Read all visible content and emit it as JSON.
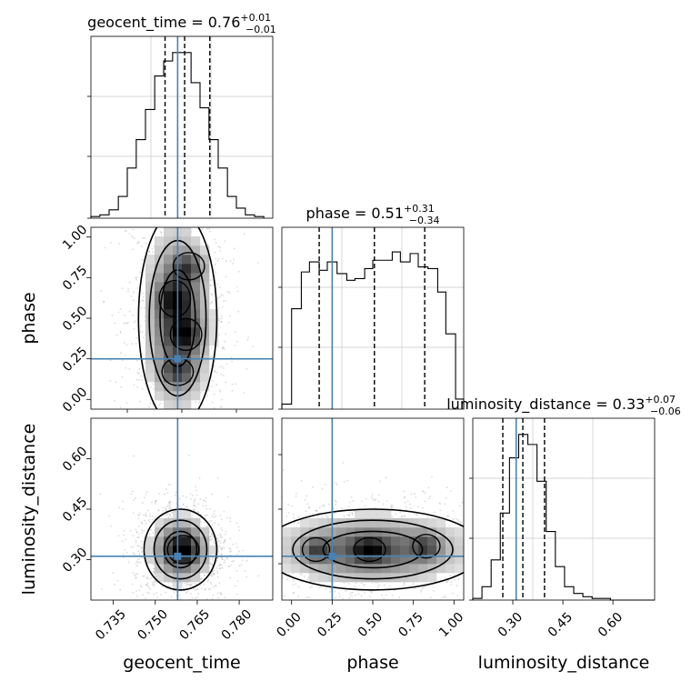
{
  "figure": {
    "type": "corner",
    "truth_color": "#4682b4",
    "hist_color": "#000000"
  },
  "chart_data": [
    {
      "type": "histogram",
      "panel": "geocent_time-hist",
      "title_main": "geocent_time = 0.76",
      "title_sup": "+0.01",
      "title_sub": "−0.01",
      "xlim": [
        0.727,
        0.792
      ],
      "truth": 0.758,
      "quantiles": [
        0.7535,
        0.7605,
        0.7695
      ],
      "bins": [
        0.727,
        0.7302,
        0.7335,
        0.7368,
        0.74,
        0.7432,
        0.7465,
        0.7498,
        0.753,
        0.7562,
        0.7595,
        0.7628,
        0.766,
        0.7692,
        0.7725,
        0.7758,
        0.779,
        0.7822,
        0.7855,
        0.7888
      ],
      "counts": [
        0.01,
        0.02,
        0.05,
        0.13,
        0.3,
        0.47,
        0.65,
        0.85,
        0.94,
        0.99,
        0.99,
        0.81,
        0.66,
        0.47,
        0.3,
        0.13,
        0.06,
        0.02,
        0.01
      ],
      "grid": true
    },
    {
      "type": "histogram",
      "panel": "phase-hist",
      "title_main": "phase = 0.51",
      "title_sup": "+0.31",
      "title_sub": "−0.34",
      "xlim": [
        -0.06,
        1.06
      ],
      "truth": 0.25,
      "quantiles": [
        0.17,
        0.51,
        0.82
      ],
      "bins": [
        -0.06,
        0.0,
        0.06,
        0.11,
        0.17,
        0.22,
        0.28,
        0.34,
        0.39,
        0.45,
        0.5,
        0.56,
        0.62,
        0.67,
        0.73,
        0.78,
        0.84,
        0.9,
        0.95,
        1.01,
        1.06
      ],
      "counts": [
        0.03,
        0.6,
        0.82,
        0.88,
        0.83,
        0.88,
        0.81,
        0.77,
        0.78,
        0.84,
        0.89,
        0.89,
        0.94,
        0.88,
        0.93,
        0.85,
        0.84,
        0.7,
        0.45,
        0.06
      ],
      "grid": true
    },
    {
      "type": "histogram",
      "panel": "luminosity_distance-hist",
      "title_main": "luminosity_distance = 0.33",
      "title_sup": "+0.07",
      "title_sub": "−0.06",
      "xlim": [
        0.18,
        0.725
      ],
      "truth": 0.31,
      "quantiles": [
        0.27,
        0.33,
        0.395
      ],
      "bins": [
        0.18,
        0.2075,
        0.235,
        0.2625,
        0.29,
        0.3175,
        0.345,
        0.3725,
        0.4,
        0.4275,
        0.455,
        0.4825,
        0.51,
        0.5375,
        0.565,
        0.5925,
        0.62,
        0.6475,
        0.675,
        0.7025,
        0.725
      ],
      "counts": [
        0.01,
        0.08,
        0.24,
        0.52,
        0.85,
        0.99,
        0.93,
        0.71,
        0.41,
        0.2,
        0.08,
        0.04,
        0.02,
        0.01,
        0.01,
        0.0,
        0.0,
        0.0,
        0.0,
        0.0
      ],
      "grid": true
    },
    {
      "type": "2d-density",
      "panel": "phase-vs-geocent_time",
      "xlim": [
        0.727,
        0.792
      ],
      "ylim": [
        -0.06,
        1.06
      ],
      "truth": [
        0.758,
        0.25
      ],
      "ylabel": "phase",
      "yticks": [
        "0.00",
        "0.25",
        "0.50",
        "0.75",
        "1.00"
      ],
      "blobs": [
        {
          "x": 0.758,
          "y": 0.5,
          "sx": 0.007,
          "sy": 0.33,
          "w": 1.0
        }
      ],
      "peaks": [
        {
          "x": 0.758,
          "y": 0.17,
          "sx": 0.004,
          "sy": 0.06
        },
        {
          "x": 0.761,
          "y": 0.4,
          "sx": 0.004,
          "sy": 0.07
        },
        {
          "x": 0.757,
          "y": 0.62,
          "sx": 0.004,
          "sy": 0.08
        },
        {
          "x": 0.762,
          "y": 0.82,
          "sx": 0.004,
          "sy": 0.06
        }
      ]
    },
    {
      "type": "2d-density",
      "panel": "luminosity_distance-vs-geocent_time",
      "xlim": [
        0.727,
        0.792
      ],
      "ylim": [
        0.18,
        0.72
      ],
      "truth": [
        0.758,
        0.31
      ],
      "ylabel": "luminosity_distance",
      "yticks": [
        "0.30",
        "0.45",
        "0.60"
      ],
      "xlabel": "geocent_time",
      "xticks": [
        "0.735",
        "0.750",
        "0.765",
        "0.780"
      ],
      "blobs": [
        {
          "x": 0.759,
          "y": 0.33,
          "sx": 0.0065,
          "sy": 0.06,
          "w": 1.0
        }
      ],
      "peaks": [
        {
          "x": 0.76,
          "y": 0.33,
          "sx": 0.004,
          "sy": 0.03
        }
      ]
    },
    {
      "type": "2d-density",
      "panel": "luminosity_distance-vs-phase",
      "xlim": [
        -0.06,
        1.06
      ],
      "ylim": [
        0.18,
        0.72
      ],
      "truth": [
        0.25,
        0.31
      ],
      "xlabel": "phase",
      "xticks": [
        "0.00",
        "0.25",
        "0.50",
        "0.75",
        "1.00"
      ],
      "blobs": [
        {
          "x": 0.5,
          "y": 0.33,
          "sx": 0.34,
          "sy": 0.06,
          "w": 1.0
        }
      ],
      "peaks": [
        {
          "x": 0.15,
          "y": 0.33,
          "sx": 0.06,
          "sy": 0.025
        },
        {
          "x": 0.48,
          "y": 0.33,
          "sx": 0.07,
          "sy": 0.025
        },
        {
          "x": 0.83,
          "y": 0.34,
          "sx": 0.06,
          "sy": 0.025
        }
      ]
    }
  ],
  "axes": {
    "ld_xticks": [
      "0.30",
      "0.45",
      "0.60"
    ],
    "ld_xlabel": "luminosity_distance"
  }
}
